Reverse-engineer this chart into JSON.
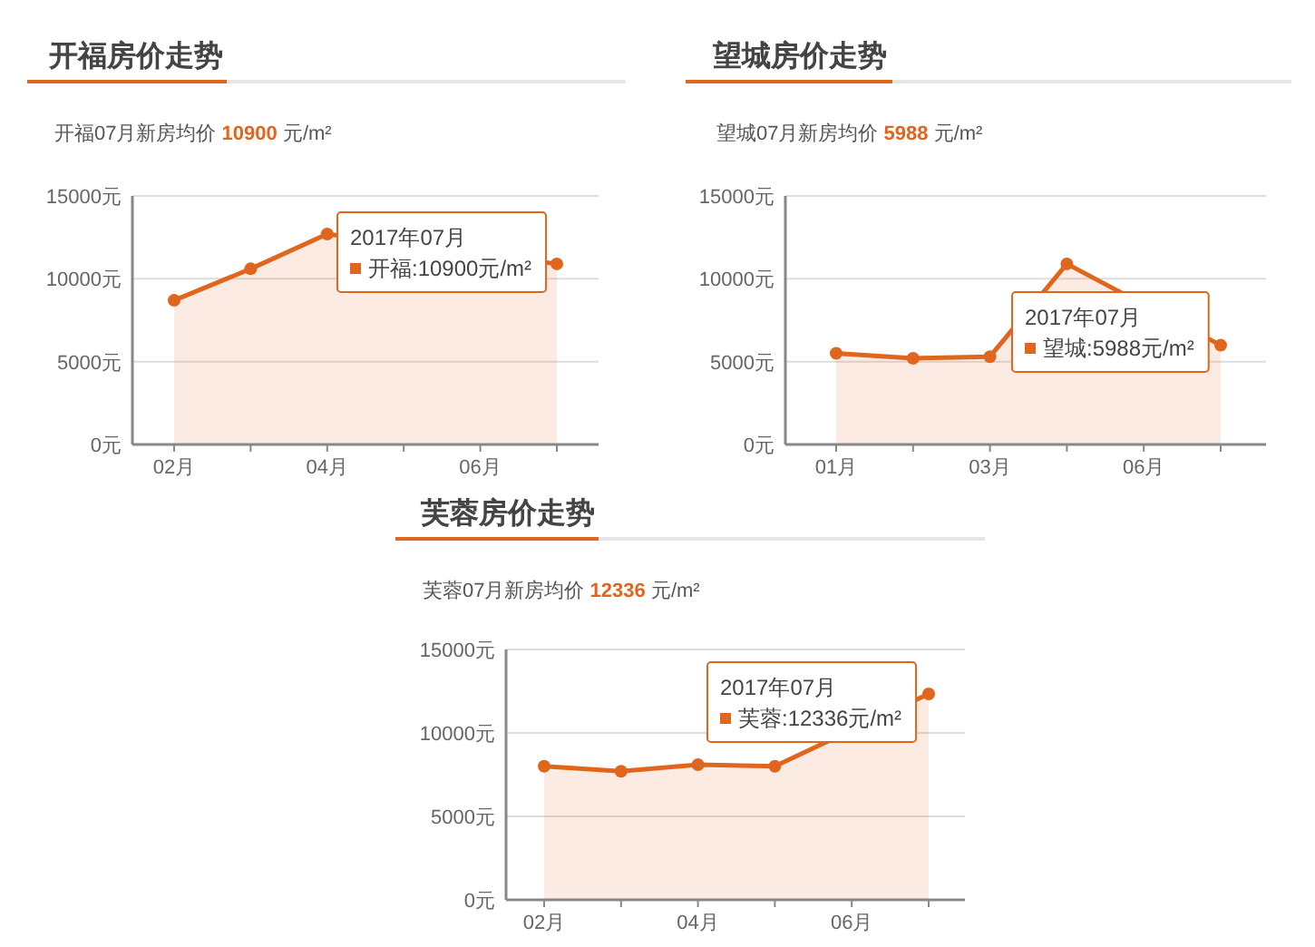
{
  "chart_data": [
    {
      "type": "area",
      "title": "开福房价走势",
      "subtitle": "开福07月新房均价 10900 元/m²",
      "categories": [
        "02月",
        null,
        "04月",
        null,
        "06月",
        null
      ],
      "series": [
        {
          "name": "开福",
          "color": "#e0661e",
          "values": [
            8700,
            10600,
            12700,
            null,
            null,
            10900
          ]
        }
      ],
      "ylim": [
        0,
        15000
      ],
      "yticks": [
        {
          "value": 0,
          "label": "0元"
        },
        {
          "value": 5000,
          "label": "5000元"
        },
        {
          "value": 10000,
          "label": "10000元"
        },
        {
          "value": 15000,
          "label": "15000元"
        }
      ],
      "grid": "y",
      "marker": "circle",
      "annotations": [
        "2017年07月",
        ":10900元/m²"
      ]
    },
    {
      "type": "area",
      "title": "望城房价走势",
      "subtitle": "望城07月新房均价 5988 元/m²",
      "categories": [
        "01月",
        null,
        "03月",
        null,
        "06月",
        null
      ],
      "series": [
        {
          "name": "望城",
          "color": "#e0661e",
          "values": [
            5500,
            5200,
            5300,
            10900,
            null,
            5988
          ]
        }
      ],
      "ylim": [
        0,
        15000
      ],
      "yticks": [
        {
          "value": 0,
          "label": "0元"
        },
        {
          "value": 5000,
          "label": "5000元"
        },
        {
          "value": 10000,
          "label": "10000元"
        },
        {
          "value": 15000,
          "label": "15000元"
        }
      ],
      "grid": "y",
      "marker": "circle",
      "annotations": [
        "2017年07月",
        ":5988元/m²"
      ]
    },
    {
      "type": "area",
      "title": "芙蓉房价走势",
      "subtitle": "芙蓉07月新房均价 12336 元/m²",
      "categories": [
        "02月",
        null,
        "04月",
        null,
        "06月",
        null
      ],
      "series": [
        {
          "name": "芙蓉",
          "color": "#e0661e",
          "values": [
            8000,
            7700,
            8100,
            8000,
            null,
            12336
          ]
        }
      ],
      "ylim": [
        0,
        15000
      ],
      "yticks": [
        {
          "value": 0,
          "label": "0元"
        },
        {
          "value": 5000,
          "label": "5000元"
        },
        {
          "value": 10000,
          "label": "10000元"
        },
        {
          "value": 15000,
          "label": "15000元"
        }
      ],
      "grid": "y",
      "marker": "circle",
      "annotations": [
        "2017年07月",
        ":12336元/m²"
      ]
    }
  ]
}
